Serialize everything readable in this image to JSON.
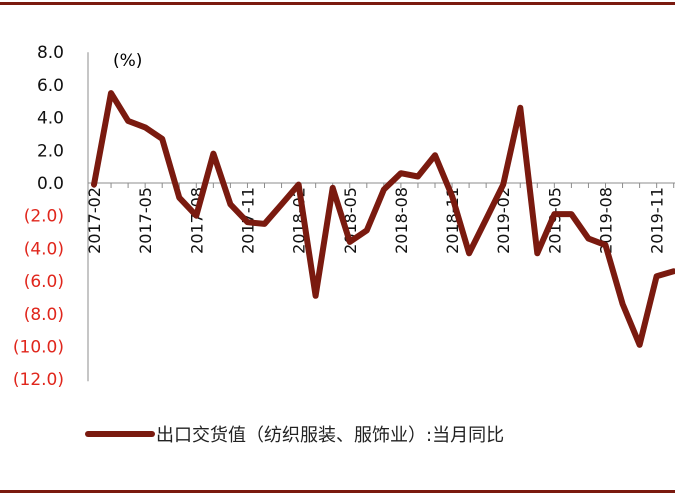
{
  "chart_data": {
    "type": "line",
    "unit_label": "(%)",
    "ylim": [
      -12,
      8
    ],
    "y_ticks": [
      "8.0",
      "6.0",
      "4.0",
      "2.0",
      "0.0",
      "(2.0)",
      "(4.0)",
      "(6.0)",
      "(8.0)",
      "(10.0)",
      "(12.0)"
    ],
    "y_tick_values": [
      8,
      6,
      4,
      2,
      0,
      -2,
      -4,
      -6,
      -8,
      -10,
      -12
    ],
    "x_tick_labels": [
      "2017-02",
      "2017-05",
      "2017-08",
      "2017-11",
      "2018-02",
      "2018-05",
      "2018-08",
      "2018-11",
      "2019-02",
      "2019-05",
      "2019-08",
      "2019-11"
    ],
    "x": [
      "2017-02",
      "2017-03",
      "2017-04",
      "2017-05",
      "2017-06",
      "2017-07",
      "2017-08",
      "2017-09",
      "2017-10",
      "2017-11",
      "2017-12",
      "2018-01",
      "2018-02",
      "2018-03",
      "2018-04",
      "2018-05",
      "2018-06",
      "2018-07",
      "2018-08",
      "2018-09",
      "2018-10",
      "2018-11",
      "2018-12",
      "2019-01",
      "2019-02",
      "2019-03",
      "2019-04",
      "2019-05",
      "2019-06",
      "2019-07",
      "2019-08",
      "2019-09",
      "2019-10",
      "2019-11",
      "2019-12"
    ],
    "series": [
      {
        "name": "出口交货值（纺织服装、服饰业）:当月同比",
        "color": "#7a1a0f",
        "values": [
          -0.1,
          5.5,
          3.8,
          3.4,
          2.7,
          -0.9,
          -2.0,
          1.8,
          -1.3,
          -2.4,
          -2.5,
          -1.3,
          -0.1,
          -6.9,
          -0.3,
          -3.6,
          -2.9,
          -0.4,
          0.6,
          0.4,
          1.7,
          -0.8,
          -4.3,
          -2.2,
          -0.1,
          4.6,
          -4.3,
          -1.9,
          -1.9,
          -3.4,
          -3.8,
          -7.4,
          -9.9,
          -5.7,
          -5.4
        ]
      }
    ],
    "legend_position": "bottom",
    "grid": false
  }
}
